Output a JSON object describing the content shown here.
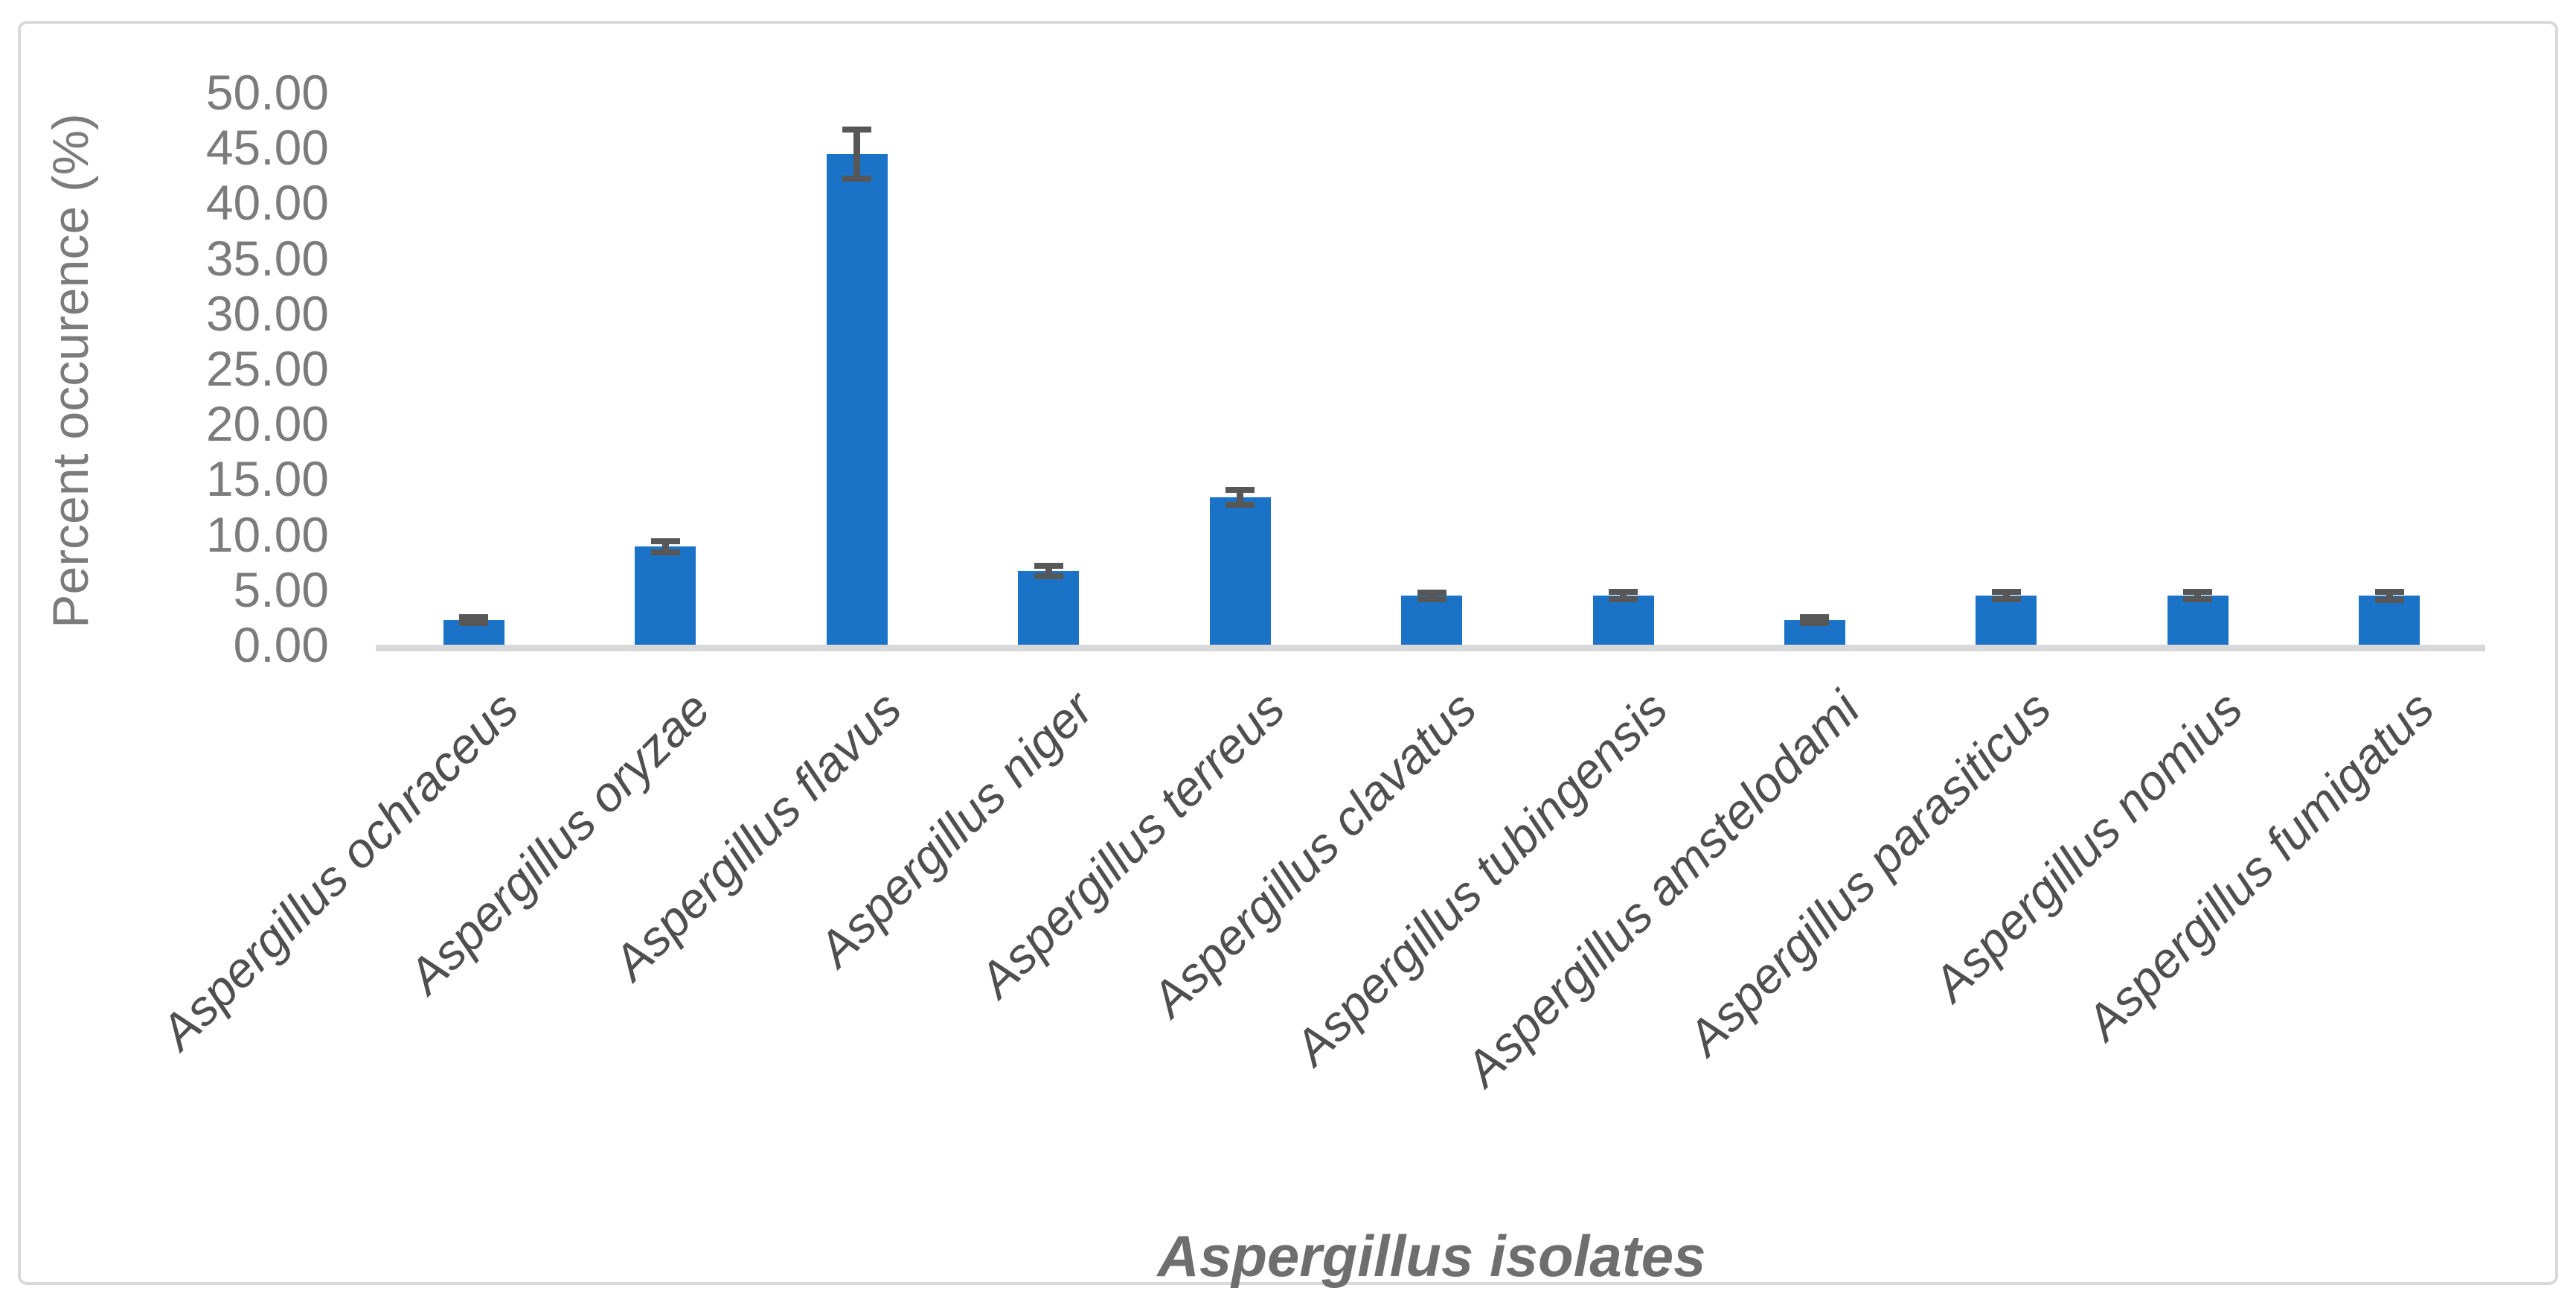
{
  "chart_data": {
    "type": "bar",
    "title": "",
    "xlabel": "Aspergillus isolates",
    "ylabel": "Percent occurence (%)",
    "categories": [
      "Aspergillus ochraceus",
      "Aspergillus oryzae",
      "Aspergillus flavus",
      "Aspergillus niger",
      "Aspergillus terreus",
      "Aspergillus clavatus",
      "Aspergillus tubingensis",
      "Aspergillus amstelodami",
      "Aspergillus parasiticus",
      "Aspergillus nomius",
      "Aspergillus fumigatus"
    ],
    "values": [
      2.22,
      8.89,
      44.44,
      6.67,
      13.33,
      4.44,
      4.44,
      2.22,
      4.44,
      4.44,
      4.44
    ],
    "error_bars": [
      0.28,
      0.5,
      2.22,
      0.45,
      0.67,
      0.3,
      0.33,
      0.28,
      0.33,
      0.33,
      0.38
    ],
    "ylim": [
      0,
      50
    ],
    "ytick_step": 5,
    "ytick_labels": [
      "0.00",
      "5.00",
      "10.00",
      "15.00",
      "20.00",
      "25.00",
      "30.00",
      "35.00",
      "40.00",
      "45.00",
      "50.00"
    ],
    "grid": "off",
    "legend": "none",
    "colors": {
      "bar": "#1B73C8",
      "error_bar": "#575757",
      "axis_line": "#D9D9D9",
      "figure_border": "#D9D9D9",
      "tick_label": "#7B7B7B",
      "category_label": "#4F4F4F",
      "axis_title": "#6E6E6E"
    }
  }
}
